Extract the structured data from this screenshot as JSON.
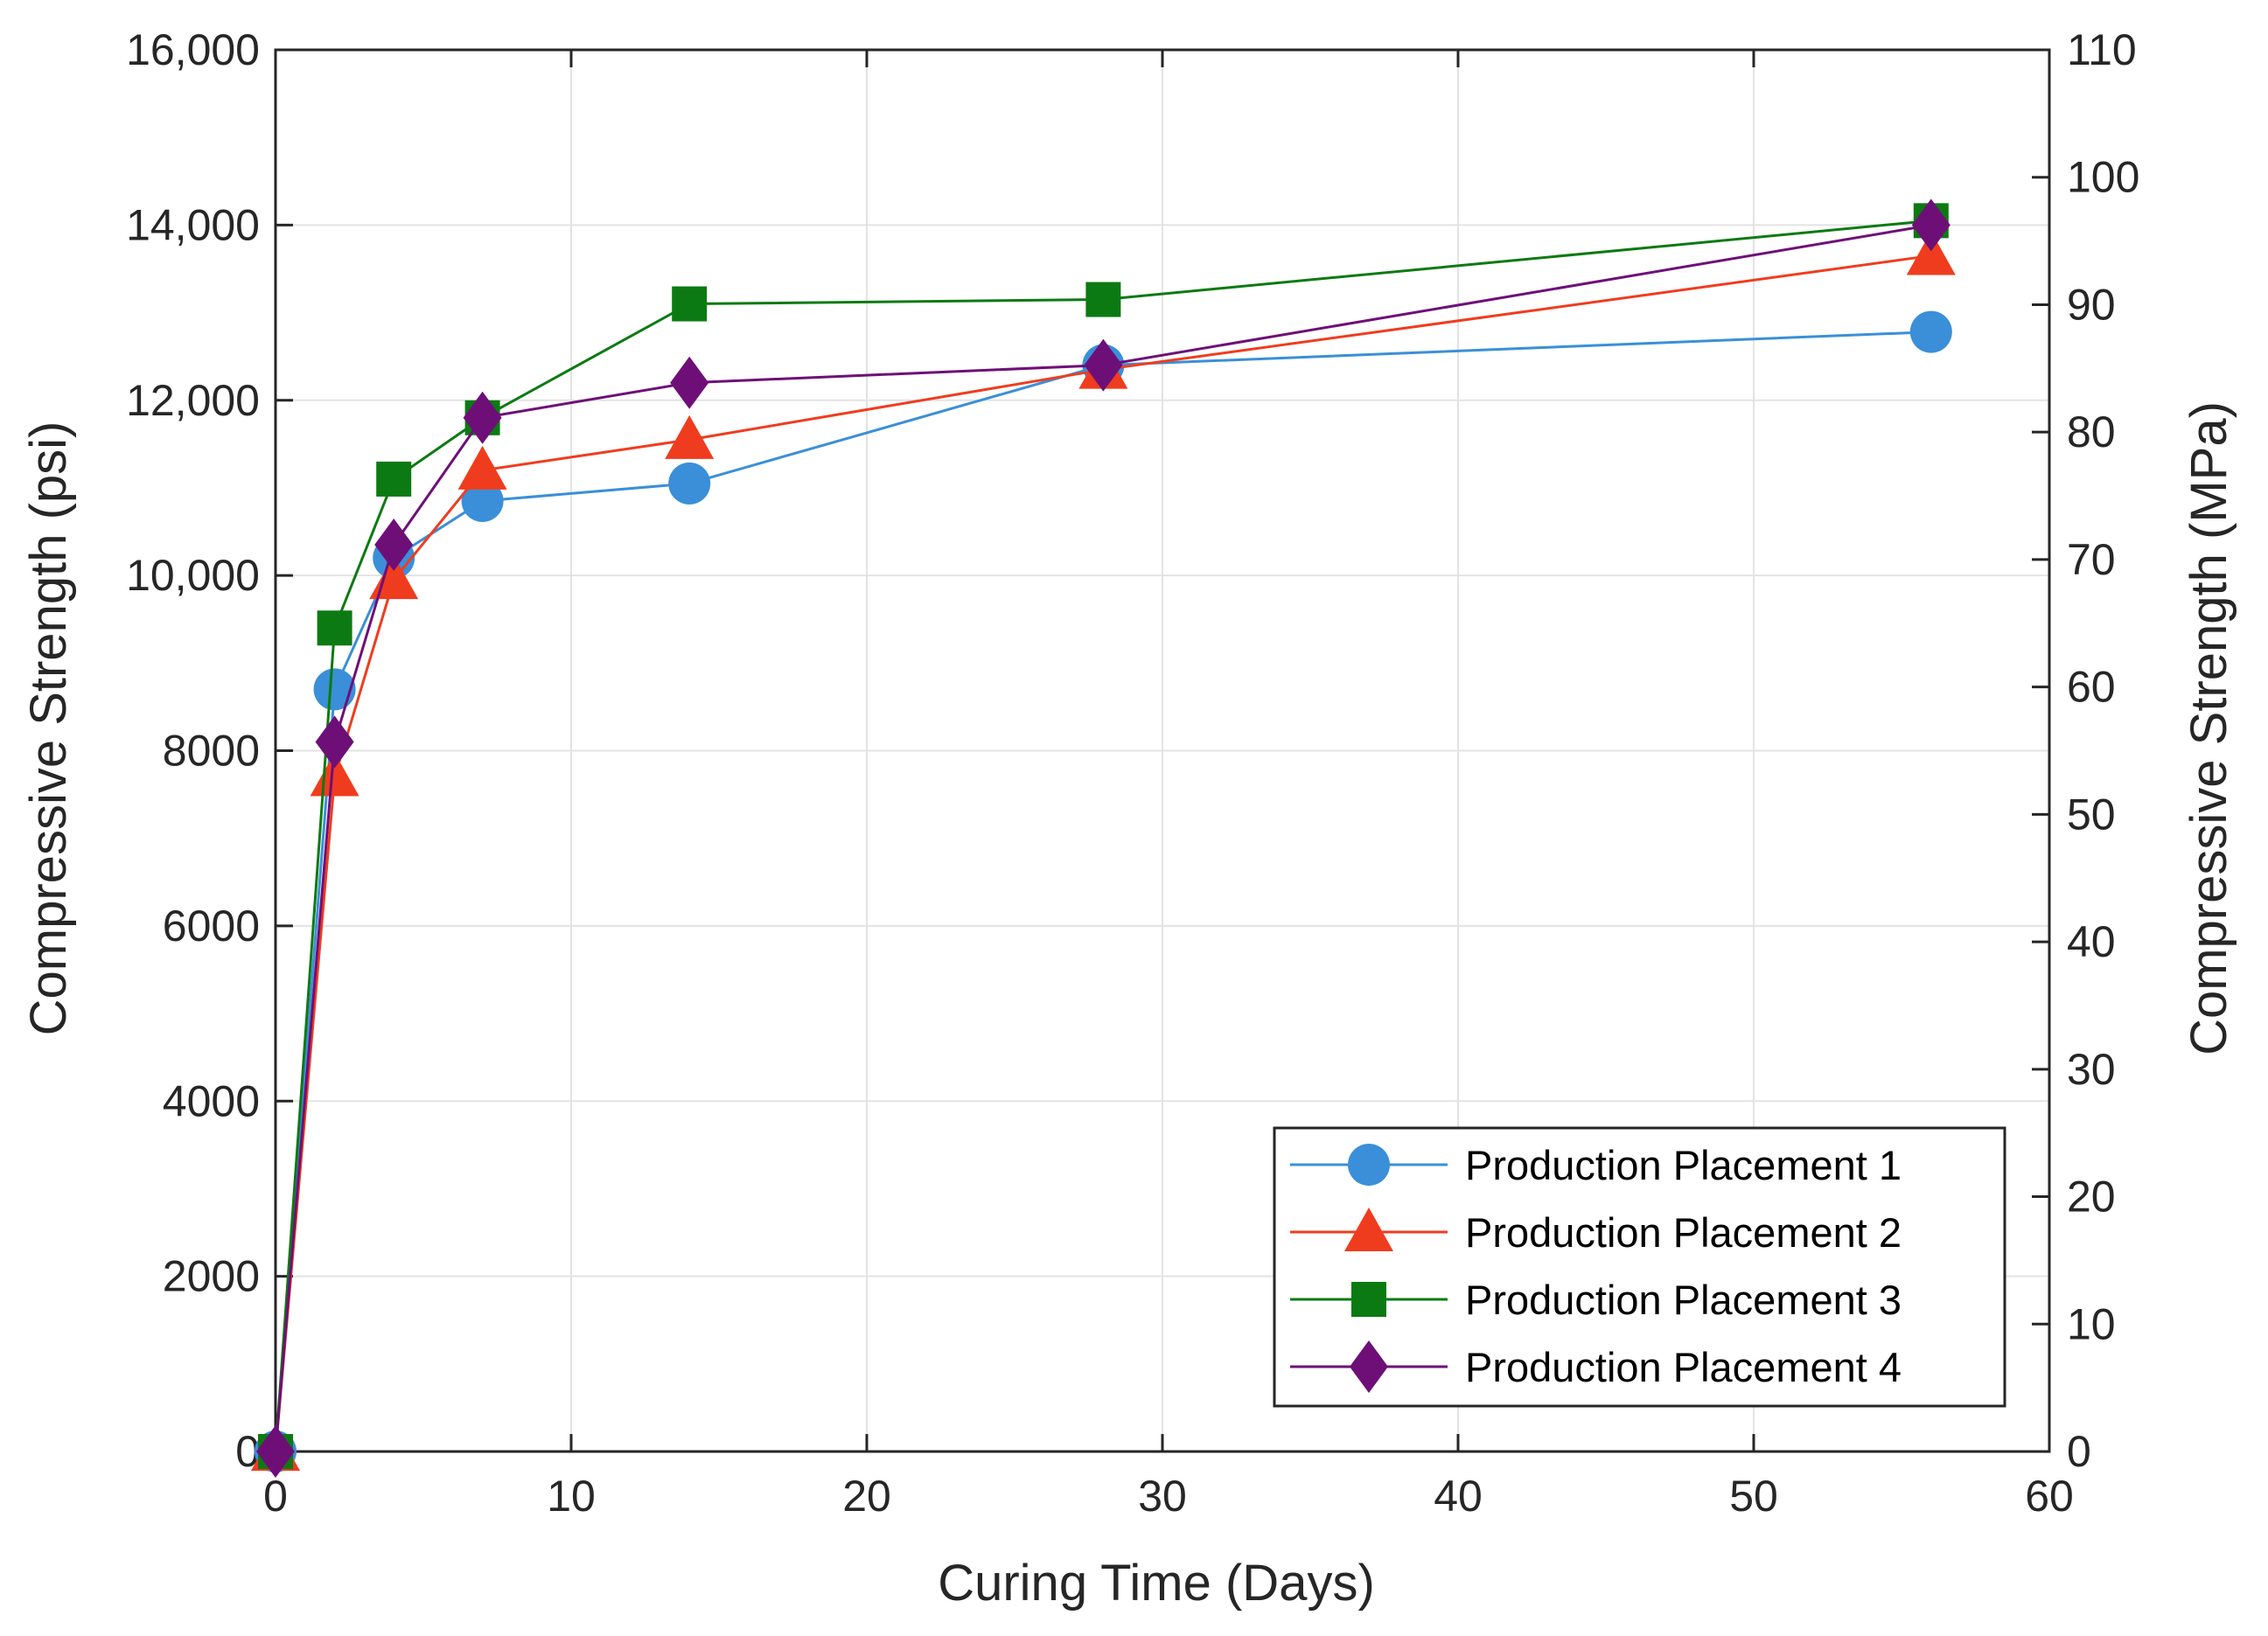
{
  "chart_data": {
    "type": "line",
    "xlabel": "Curing Time (Days)",
    "ylabel": "Compressive Strength (psi)",
    "y2label": "Compressive Strength (MPa)",
    "xlim": [
      0,
      60
    ],
    "ylim": [
      0,
      16000
    ],
    "y2lim": [
      0,
      110
    ],
    "grid": true,
    "legend_position": "bottom-right",
    "x_ticks": [
      {
        "value": 0,
        "label": "0"
      },
      {
        "value": 10,
        "label": "10"
      },
      {
        "value": 20,
        "label": "20"
      },
      {
        "value": 30,
        "label": "30"
      },
      {
        "value": 40,
        "label": "40"
      },
      {
        "value": 50,
        "label": "50"
      },
      {
        "value": 60,
        "label": "60"
      }
    ],
    "y_ticks": [
      {
        "value": 0,
        "label": "0"
      },
      {
        "value": 2000,
        "label": "2000"
      },
      {
        "value": 4000,
        "label": "4000"
      },
      {
        "value": 6000,
        "label": "6000"
      },
      {
        "value": 8000,
        "label": "8000"
      },
      {
        "value": 10000,
        "label": "10,000"
      },
      {
        "value": 12000,
        "label": "12,000"
      },
      {
        "value": 14000,
        "label": "14,000"
      },
      {
        "value": 16000,
        "label": "16,000"
      }
    ],
    "y2_ticks": [
      {
        "value": 0,
        "label": "0"
      },
      {
        "value": 10,
        "label": "10"
      },
      {
        "value": 20,
        "label": "20"
      },
      {
        "value": 30,
        "label": "30"
      },
      {
        "value": 40,
        "label": "40"
      },
      {
        "value": 50,
        "label": "50"
      },
      {
        "value": 60,
        "label": "60"
      },
      {
        "value": 70,
        "label": "70"
      },
      {
        "value": 80,
        "label": "80"
      },
      {
        "value": 90,
        "label": "90"
      },
      {
        "value": 100,
        "label": "100"
      },
      {
        "value": 110,
        "label": "110"
      }
    ],
    "series": [
      {
        "name": "Production Placement 1",
        "color": "#3a8fd8",
        "marker": "circle",
        "x": [
          0,
          2,
          4,
          7,
          14,
          28,
          56
        ],
        "y": [
          0,
          8700,
          10200,
          10850,
          11050,
          12400,
          12780
        ]
      },
      {
        "name": "Production Placement 2",
        "color": "#f03c1e",
        "marker": "triangle",
        "x": [
          0,
          2,
          4,
          7,
          14,
          28,
          56
        ],
        "y": [
          0,
          7700,
          9950,
          11200,
          11550,
          12350,
          13650
        ]
      },
      {
        "name": "Production Placement 3",
        "color": "#0c7a12",
        "marker": "square",
        "x": [
          0,
          2,
          4,
          7,
          14,
          28,
          56
        ],
        "y": [
          0,
          9400,
          11100,
          11800,
          13100,
          13150,
          14050
        ]
      },
      {
        "name": "Production Placement 4",
        "color": "#6e0f78",
        "marker": "diamond",
        "x": [
          0,
          2,
          4,
          7,
          14,
          28,
          56
        ],
        "y": [
          0,
          8100,
          10350,
          11800,
          12200,
          12400,
          14000
        ]
      }
    ]
  }
}
